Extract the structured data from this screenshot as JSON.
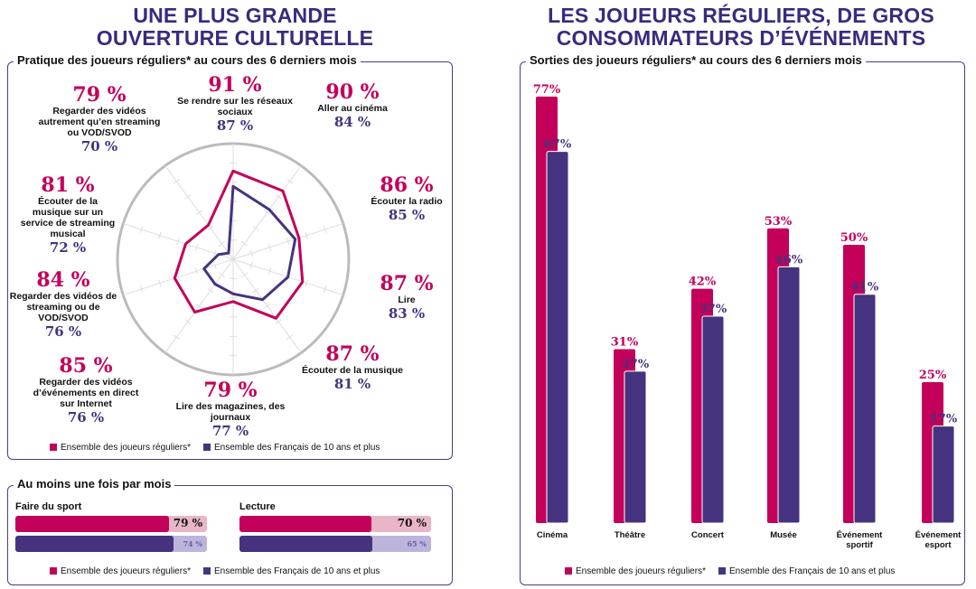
{
  "left_title": [
    "UNE PLUS GRANDE",
    "OUVERTURE CULTURELLE"
  ],
  "right_title": [
    "LES JOUEURS RÉGULIERS, DE GROS",
    "CONSOMMATEURS D’ÉVÉNEMENTS"
  ],
  "colors": {
    "joueurs": "#c3005a",
    "francais": "#45337f",
    "joueurs_light": "#e8b6c8",
    "francais_light": "#bdb4dc",
    "title": "#3b2a7e"
  },
  "legend": {
    "joueurs": "Ensemble des joueurs réguliers*",
    "francais": "Ensemble des Français de 10 ans et plus"
  },
  "chart_data": [
    {
      "type": "radar",
      "title": "Pratique des joueurs réguliers* au cours des 6 derniers mois",
      "categories": [
        "Se rendre sur les réseaux sociaux",
        "Aller au cinéma",
        "Écouter la radio",
        "Lire",
        "Écouter de la musique",
        "Lire des magazines, des journaux",
        "Regarder des vidéos d’événements en direct sur Internet",
        "Regarder des vidéos de streaming ou de VOD/SVOD",
        "Écouter de la musique sur un service de streaming musical",
        "Regarder des vidéos autrement qu’en streaming ou VOD/SVOD"
      ],
      "series": [
        {
          "name": "Ensemble des joueurs réguliers*",
          "values": [
            91,
            90,
            86,
            87,
            87,
            79,
            85,
            84,
            81,
            79
          ]
        },
        {
          "name": "Ensemble des Français de 10 ans et plus",
          "values": [
            87,
            84,
            85,
            83,
            81,
            77,
            76,
            76,
            72,
            70
          ]
        }
      ],
      "legend": "bottom"
    },
    {
      "type": "bar",
      "title": "Au moins une fois par mois",
      "categories": [
        "Faire du sport",
        "Lecture"
      ],
      "series": [
        {
          "name": "Ensemble des joueurs réguliers*",
          "values": [
            79,
            70
          ]
        },
        {
          "name": "Ensemble des Français de 10 ans et plus",
          "values": [
            74,
            65
          ]
        }
      ],
      "legend": "bottom"
    },
    {
      "type": "bar",
      "title": "Sorties des joueurs réguliers* au cours des 6 derniers mois",
      "categories": [
        "Cinéma",
        "Théâtre",
        "Concert",
        "Musée",
        "Événement sportif",
        "Événement esport"
      ],
      "series": [
        {
          "name": "Ensemble des joueurs réguliers*",
          "values": [
            77,
            31,
            42,
            53,
            50,
            25
          ]
        },
        {
          "name": "Ensemble des Français de 10 ans et plus",
          "values": [
            67,
            27,
            37,
            46,
            41,
            17
          ]
        }
      ],
      "legend": "bottom"
    }
  ]
}
